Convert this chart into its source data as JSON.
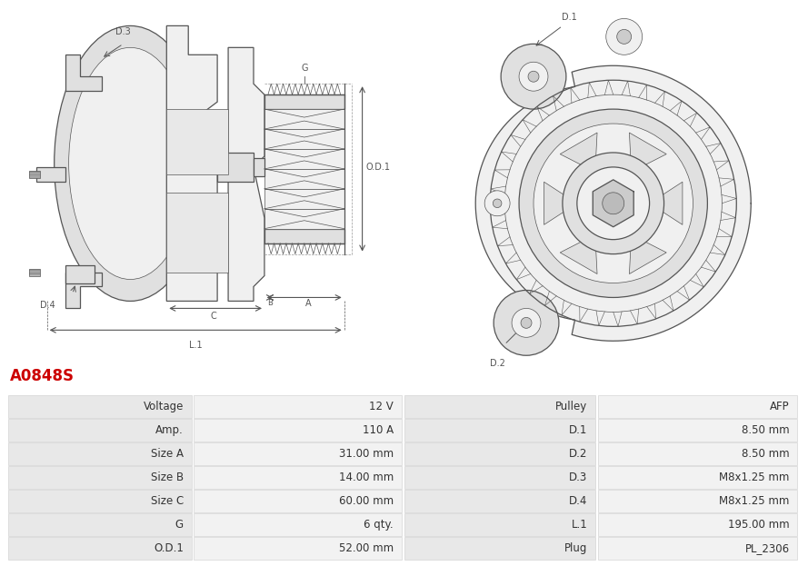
{
  "title": "A0848S",
  "title_color": "#cc0000",
  "bg_color": "#ffffff",
  "table_row_bg1": "#e8e8e8",
  "table_row_bg2": "#f2f2f2",
  "rows": [
    [
      "Voltage",
      "12 V",
      "Pulley",
      "AFP"
    ],
    [
      "Amp.",
      "110 A",
      "D.1",
      "8.50 mm"
    ],
    [
      "Size A",
      "31.00 mm",
      "D.2",
      "8.50 mm"
    ],
    [
      "Size B",
      "14.00 mm",
      "D.3",
      "M8x1.25 mm"
    ],
    [
      "Size C",
      "60.00 mm",
      "D.4",
      "M8x1.25 mm"
    ],
    [
      "G",
      "6 qty.",
      "L.1",
      "195.00 mm"
    ],
    [
      "O.D.1",
      "52.00 mm",
      "Plug",
      "PL_2306"
    ]
  ],
  "label_fontsize": 8.5,
  "title_fontsize": 12,
  "line_color": "#555555",
  "dim_color": "#555555",
  "fill_light": "#f0f0f0",
  "fill_mid": "#e0e0e0",
  "fill_dark": "#cccccc"
}
